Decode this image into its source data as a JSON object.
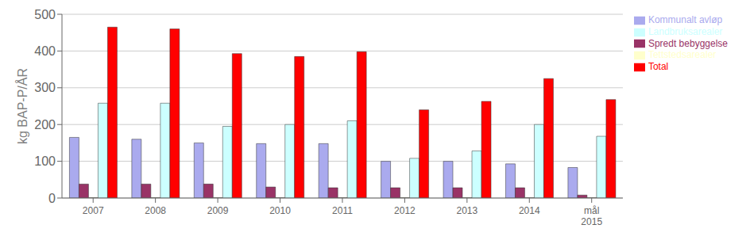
{
  "chart_data": {
    "type": "bar",
    "categories": [
      "2007",
      "2008",
      "2009",
      "2010",
      "2011",
      "2012",
      "2013",
      "2014",
      "mål\n2015"
    ],
    "series": [
      {
        "name": "Kommunalt avløp",
        "color": "#aaaaee",
        "values": [
          165,
          160,
          150,
          148,
          148,
          100,
          100,
          93,
          83
        ]
      },
      {
        "name": "Spredt bebyggelse",
        "color": "#993366",
        "values": [
          38,
          38,
          38,
          30,
          28,
          28,
          28,
          28,
          8
        ]
      },
      {
        "name": "Tettstedsarealer",
        "color": "#ffffcc",
        "values": [
          1,
          1,
          1,
          1,
          1,
          1,
          1,
          1,
          1
        ]
      },
      {
        "name": "Landbruksarealer",
        "color": "#ccffff",
        "values": [
          258,
          258,
          195,
          200,
          210,
          108,
          128,
          200,
          168
        ]
      },
      {
        "name": "Total",
        "color": "#ff0000",
        "values": [
          465,
          460,
          393,
          385,
          398,
          240,
          263,
          325,
          268
        ]
      }
    ],
    "ylabel": "kg BAP-P/ÅR",
    "ylim": [
      0,
      500
    ],
    "yticks": [
      0,
      100,
      200,
      300,
      400,
      500
    ],
    "grid": true,
    "legend": "right"
  }
}
